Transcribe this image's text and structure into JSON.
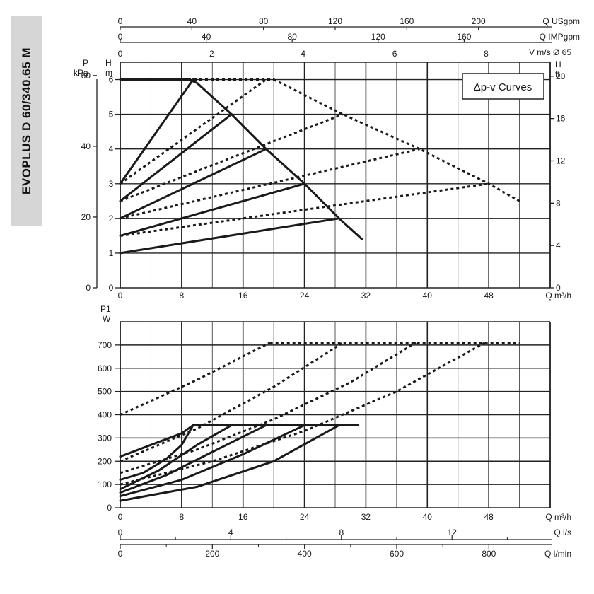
{
  "page": {
    "side_title": "EVOPLUS D 60/340.65 M"
  },
  "chart_data": [
    {
      "type": "line",
      "legend_box": "Δp-v Curves",
      "xlabel": "Q m³/h",
      "x_ticks": [
        0,
        8,
        16,
        24,
        32,
        40,
        48
      ],
      "xlim": [
        0,
        56
      ],
      "y_left_primary": {
        "label_line1": "H",
        "label_line2": "m",
        "ticks": [
          0,
          1,
          2,
          3,
          4,
          5,
          6
        ],
        "ylim": [
          0,
          6.5
        ]
      },
      "y_left_secondary": {
        "label_line1": "P",
        "label_line2": "kPa",
        "ticks": [
          0,
          20,
          40,
          60
        ]
      },
      "y_right": {
        "label_line1": "H",
        "label_line2": "ft",
        "ticks": [
          0,
          4,
          8,
          12,
          16,
          20
        ]
      },
      "top_axes": [
        {
          "label": "Q USgpm",
          "ticks": [
            0,
            40,
            80,
            120,
            160,
            200
          ]
        },
        {
          "label": "Q IMPgpm",
          "ticks": [
            0,
            40,
            80,
            120,
            160
          ]
        },
        {
          "label": "V m/s Ø 65",
          "ticks": [
            0,
            2,
            4,
            6,
            8
          ]
        }
      ],
      "series": [
        {
          "style": "solid",
          "x": [
            0,
            9.5
          ],
          "y": [
            3.0,
            6.0
          ]
        },
        {
          "style": "solid",
          "x": [
            0,
            14.5
          ],
          "y": [
            2.5,
            5.0
          ]
        },
        {
          "style": "solid",
          "x": [
            0,
            19
          ],
          "y": [
            2.0,
            4.0
          ]
        },
        {
          "style": "solid",
          "x": [
            0,
            24
          ],
          "y": [
            1.5,
            3.0
          ]
        },
        {
          "style": "solid",
          "x": [
            0,
            28.5
          ],
          "y": [
            1.0,
            2.0
          ]
        },
        {
          "style": "solid",
          "x": [
            0,
            9,
            10,
            14.5,
            19,
            24,
            28.5,
            31.5
          ],
          "y": [
            6.0,
            6.0,
            5.9,
            5.0,
            4.0,
            3.0,
            2.0,
            1.4
          ]
        },
        {
          "style": "dotted",
          "x": [
            0,
            19
          ],
          "y": [
            3.0,
            6.0
          ]
        },
        {
          "style": "dotted",
          "x": [
            0,
            29
          ],
          "y": [
            2.5,
            5.0
          ]
        },
        {
          "style": "dotted",
          "x": [
            0,
            39
          ],
          "y": [
            2.0,
            4.0
          ]
        },
        {
          "style": "dotted",
          "x": [
            0,
            48
          ],
          "y": [
            1.5,
            3.0
          ]
        },
        {
          "style": "dotted",
          "x": [
            0,
            20
          ],
          "y": [
            6.0,
            6.0
          ]
        },
        {
          "style": "dotted",
          "x": [
            20,
            29,
            39,
            48,
            52
          ],
          "y": [
            6.0,
            5.0,
            4.0,
            3.0,
            2.5
          ]
        }
      ]
    },
    {
      "type": "line",
      "xlabel": "Q m³/h",
      "x_ticks": [
        0,
        8,
        16,
        24,
        32,
        40,
        48
      ],
      "xlim": [
        0,
        56
      ],
      "y_left": {
        "label_line1": "P1",
        "label_line2": "W",
        "ticks": [
          0,
          100,
          200,
          300,
          400,
          500,
          600,
          700
        ],
        "ylim": [
          0,
          800
        ]
      },
      "bottom_axes": [
        {
          "label": "Q l/s",
          "ticks": [
            0,
            4,
            8,
            12
          ]
        },
        {
          "label": "Q l/min",
          "ticks": [
            0,
            200,
            400,
            600,
            800
          ]
        }
      ],
      "series": [
        {
          "style": "solid",
          "x": [
            0,
            4,
            8,
            9.5
          ],
          "y": [
            220,
            270,
            320,
            355
          ]
        },
        {
          "style": "solid",
          "x": [
            0,
            5,
            10,
            14.5
          ],
          "y": [
            80,
            160,
            270,
            355
          ]
        },
        {
          "style": "solid",
          "x": [
            0,
            6,
            12,
            19
          ],
          "y": [
            65,
            140,
            240,
            355
          ]
        },
        {
          "style": "solid",
          "x": [
            0,
            8,
            16,
            24
          ],
          "y": [
            50,
            120,
            230,
            355
          ]
        },
        {
          "style": "solid",
          "x": [
            0,
            10,
            20,
            28.5
          ],
          "y": [
            30,
            90,
            200,
            355
          ]
        },
        {
          "style": "solid",
          "x": [
            9.5,
            31
          ],
          "y": [
            355,
            355
          ]
        },
        {
          "style": "solid",
          "x": [
            0,
            3,
            6,
            8,
            9.5
          ],
          "y": [
            120,
            150,
            210,
            270,
            355
          ]
        },
        {
          "style": "dotted",
          "x": [
            0,
            10,
            19.5
          ],
          "y": [
            400,
            550,
            710
          ]
        },
        {
          "style": "dotted",
          "x": [
            0,
            10,
            20,
            29
          ],
          "y": [
            200,
            340,
            520,
            710
          ]
        },
        {
          "style": "dotted",
          "x": [
            0,
            10,
            20,
            30,
            38.5
          ],
          "y": [
            150,
            250,
            380,
            540,
            710
          ]
        },
        {
          "style": "dotted",
          "x": [
            0,
            12,
            24,
            36,
            47.5
          ],
          "y": [
            100,
            200,
            330,
            500,
            710
          ]
        },
        {
          "style": "dotted",
          "x": [
            19.5,
            52
          ],
          "y": [
            710,
            710
          ]
        }
      ]
    }
  ]
}
